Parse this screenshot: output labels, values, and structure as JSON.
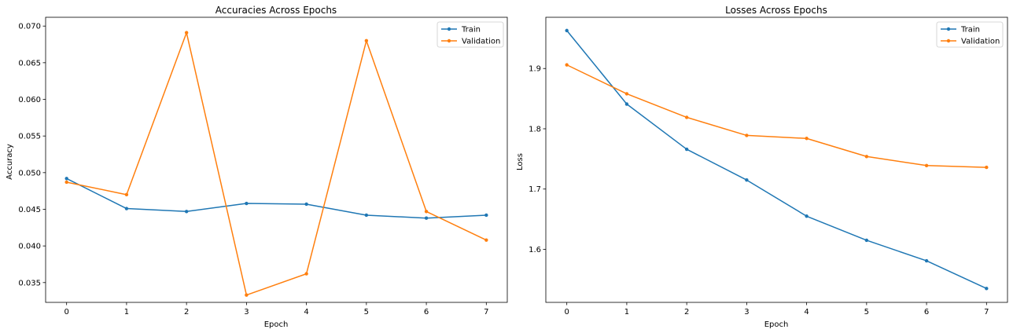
{
  "chart_data": [
    {
      "type": "line",
      "title": "Accuracies Across Epochs",
      "xlabel": "Epoch",
      "ylabel": "Accuracy",
      "x": [
        0,
        1,
        2,
        3,
        4,
        5,
        6,
        7
      ],
      "xticks": [
        "0",
        "1",
        "2",
        "3",
        "4",
        "5",
        "6",
        "7"
      ],
      "yticks": [
        "0.035",
        "0.040",
        "0.045",
        "0.050",
        "0.055",
        "0.060",
        "0.065",
        "0.070"
      ],
      "xlim": [
        -0.35,
        7.35
      ],
      "ylim": [
        0.0323,
        0.0712
      ],
      "legend_position": "top-right",
      "grid": false,
      "series": [
        {
          "name": "Train",
          "color": "#1f77b4",
          "values": [
            0.0492,
            0.0451,
            0.0447,
            0.0458,
            0.0457,
            0.0442,
            0.0438,
            0.0442
          ]
        },
        {
          "name": "Validation",
          "color": "#ff7f0e",
          "values": [
            0.0487,
            0.047,
            0.0691,
            0.0333,
            0.0362,
            0.068,
            0.0447,
            0.0408
          ]
        }
      ]
    },
    {
      "type": "line",
      "title": "Losses Across Epochs",
      "xlabel": "Epoch",
      "ylabel": "Loss",
      "x": [
        0,
        1,
        2,
        3,
        4,
        5,
        6,
        7
      ],
      "xticks": [
        "0",
        "1",
        "2",
        "3",
        "4",
        "5",
        "6",
        "7"
      ],
      "yticks": [
        "1.6",
        "1.7",
        "1.8",
        "1.9"
      ],
      "xlim": [
        -0.35,
        7.35
      ],
      "ylim": [
        1.512,
        1.985
      ],
      "legend_position": "top-right",
      "grid": false,
      "series": [
        {
          "name": "Train",
          "color": "#1f77b4",
          "values": [
            1.963,
            1.841,
            1.766,
            1.715,
            1.655,
            1.615,
            1.581,
            1.535
          ]
        },
        {
          "name": "Validation",
          "color": "#ff7f0e",
          "values": [
            1.906,
            1.858,
            1.819,
            1.789,
            1.784,
            1.754,
            1.739,
            1.736
          ]
        }
      ]
    }
  ]
}
